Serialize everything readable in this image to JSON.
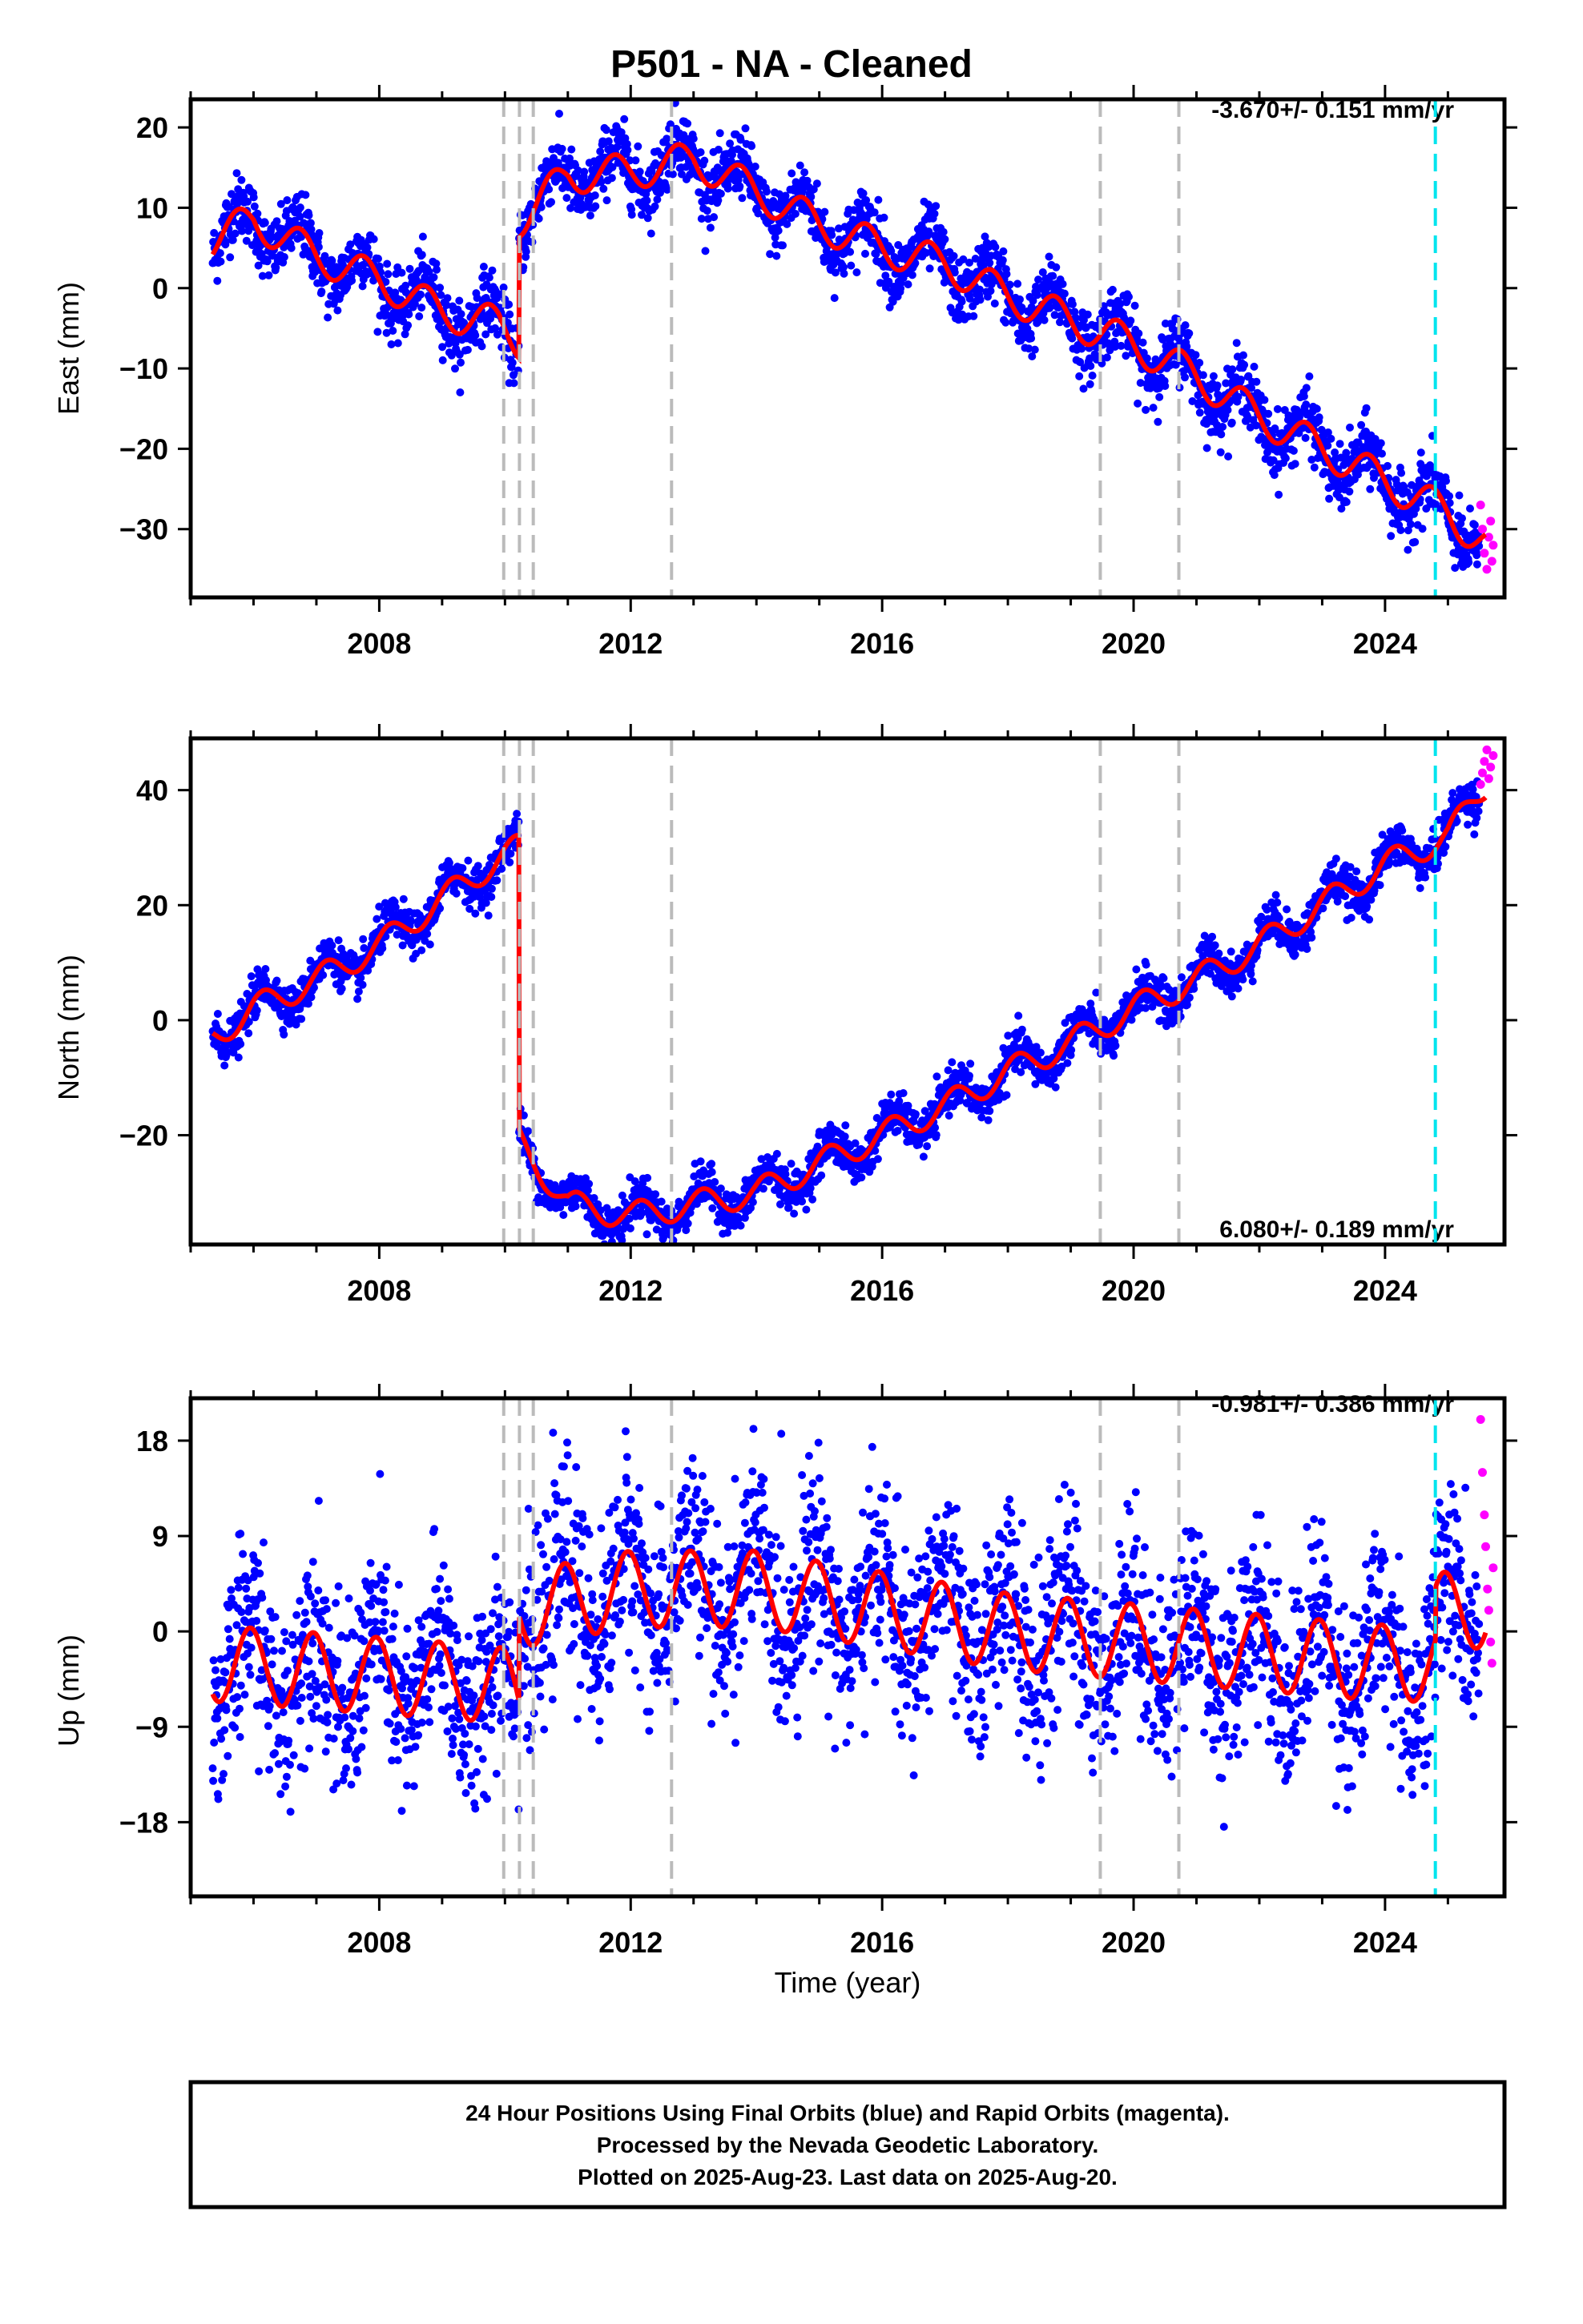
{
  "title": "P501  - NA - Cleaned",
  "colors": {
    "final": "#0000ff",
    "rapid": "#ff00ff",
    "model": "#ff0000",
    "event_line": "#bbbbbb",
    "marker_line": "#00e5ee"
  },
  "x_axis": {
    "label": "Time (year)",
    "range": [
      2005.0,
      2025.9
    ],
    "ticks": [
      2008,
      2012,
      2016,
      2020,
      2024
    ],
    "minor_step": 1
  },
  "event_lines": [
    2009.98,
    2010.23,
    2010.45,
    2012.65,
    2019.47,
    2020.72
  ],
  "marker_line": 2024.8,
  "chart_data": [
    {
      "type": "scatter",
      "component": "east",
      "ylabel": "East (mm)",
      "ylim": [
        -38.5,
        23.5
      ],
      "yticks": [
        -30,
        -20,
        -10,
        0,
        10,
        20
      ],
      "tick_labels": [
        "−30",
        "−20",
        "−10",
        "0",
        "10",
        "20"
      ],
      "rate": "-3.670+/- 0.151 mm/yr",
      "rate_position": "top-right",
      "model_knots": [
        [
          2005.35,
          6
        ],
        [
          2006.0,
          8.5
        ],
        [
          2007.0,
          4
        ],
        [
          2008.0,
          1
        ],
        [
          2009.0,
          -3
        ],
        [
          2009.9,
          -4.5
        ],
        [
          2010.22,
          -6.5
        ],
        [
          2010.22,
          8.5
        ],
        [
          2011.0,
          14
        ],
        [
          2012.0,
          14.5
        ],
        [
          2013.0,
          16
        ],
        [
          2014.0,
          12
        ],
        [
          2015.0,
          8
        ],
        [
          2016.0,
          5
        ],
        [
          2017.0,
          3
        ],
        [
          2018.0,
          -1
        ],
        [
          2019.0,
          -4
        ],
        [
          2020.0,
          -7
        ],
        [
          2021.0,
          -11
        ],
        [
          2022.0,
          -16
        ],
        [
          2023.0,
          -20
        ],
        [
          2024.0,
          -24
        ],
        [
          2025.0,
          -28
        ],
        [
          2025.6,
          -32
        ]
      ],
      "seasonal_amp": 2.8,
      "seasonal_phase": 0.5,
      "scatter_noise": 2.0,
      "rapid_points": [
        [
          2025.52,
          -27
        ],
        [
          2025.55,
          -30
        ],
        [
          2025.58,
          -33
        ],
        [
          2025.62,
          -35
        ],
        [
          2025.65,
          -31
        ],
        [
          2025.68,
          -29
        ],
        [
          2025.7,
          -34
        ],
        [
          2025.72,
          -32
        ]
      ]
    },
    {
      "type": "scatter",
      "component": "north",
      "ylabel": "North (mm)",
      "ylim": [
        -39,
        49
      ],
      "yticks": [
        -20,
        0,
        20,
        40
      ],
      "tick_labels": [
        "−20",
        "0",
        "20",
        "40"
      ],
      "rate": "6.080+/- 0.189 mm/yr",
      "rate_position": "bottom-right",
      "model_knots": [
        [
          2005.35,
          -3
        ],
        [
          2006.0,
          2
        ],
        [
          2007.0,
          7
        ],
        [
          2008.0,
          13
        ],
        [
          2009.0,
          21
        ],
        [
          2009.9,
          28
        ],
        [
          2010.22,
          30
        ],
        [
          2010.22,
          -21
        ],
        [
          2011.0,
          -32
        ],
        [
          2012.0,
          -34
        ],
        [
          2013.0,
          -32
        ],
        [
          2014.0,
          -30
        ],
        [
          2015.0,
          -25
        ],
        [
          2016.0,
          -20
        ],
        [
          2017.0,
          -15
        ],
        [
          2018.0,
          -9
        ],
        [
          2019.0,
          -4
        ],
        [
          2020.0,
          2
        ],
        [
          2021.0,
          7
        ],
        [
          2022.0,
          13
        ],
        [
          2023.0,
          20
        ],
        [
          2024.0,
          27
        ],
        [
          2025.0,
          32
        ],
        [
          2025.6,
          41
        ]
      ],
      "seasonal_amp": 3.0,
      "seasonal_phase": 0.1,
      "scatter_noise": 1.8,
      "rapid_points": [
        [
          2025.52,
          41
        ],
        [
          2025.55,
          43
        ],
        [
          2025.58,
          45
        ],
        [
          2025.62,
          47
        ],
        [
          2025.65,
          42
        ],
        [
          2025.68,
          44
        ],
        [
          2025.72,
          46
        ]
      ]
    },
    {
      "type": "scatter",
      "component": "up",
      "ylabel": "Up (mm)",
      "ylim": [
        -25,
        22
      ],
      "yticks": [
        -18,
        -9,
        0,
        9,
        18
      ],
      "tick_labels": [
        "−18",
        "−9",
        "0",
        "9",
        "18"
      ],
      "rate": "-0.981+/- 0.386 mm/yr",
      "rate_position": "top-right",
      "model_knots": [
        [
          2005.35,
          -3
        ],
        [
          2009.9,
          -5
        ],
        [
          2010.22,
          -6
        ],
        [
          2010.22,
          2
        ],
        [
          2012.0,
          4
        ],
        [
          2014.0,
          4
        ],
        [
          2016.0,
          2
        ],
        [
          2018.0,
          0
        ],
        [
          2020.0,
          -1
        ],
        [
          2022.0,
          -2
        ],
        [
          2024.0,
          -3
        ],
        [
          2024.8,
          -3
        ],
        [
          2024.8,
          2
        ],
        [
          2025.6,
          2
        ]
      ],
      "seasonal_amp": 4.5,
      "seasonal_phase": 0.3,
      "scatter_noise": 4.5,
      "rapid_points": [
        [
          2025.52,
          20
        ],
        [
          2025.55,
          15
        ],
        [
          2025.58,
          11
        ],
        [
          2025.6,
          8
        ],
        [
          2025.63,
          4
        ],
        [
          2025.65,
          2
        ],
        [
          2025.68,
          -1
        ],
        [
          2025.7,
          -3
        ],
        [
          2025.72,
          6
        ]
      ]
    }
  ],
  "footer": {
    "line1": "24 Hour Positions Using Final Orbits (blue) and Rapid Orbits (magenta).",
    "line2": "Processed by the Nevada Geodetic Laboratory.",
    "line3": "Plotted on 2025-Aug-23. Last data on 2025-Aug-20."
  }
}
